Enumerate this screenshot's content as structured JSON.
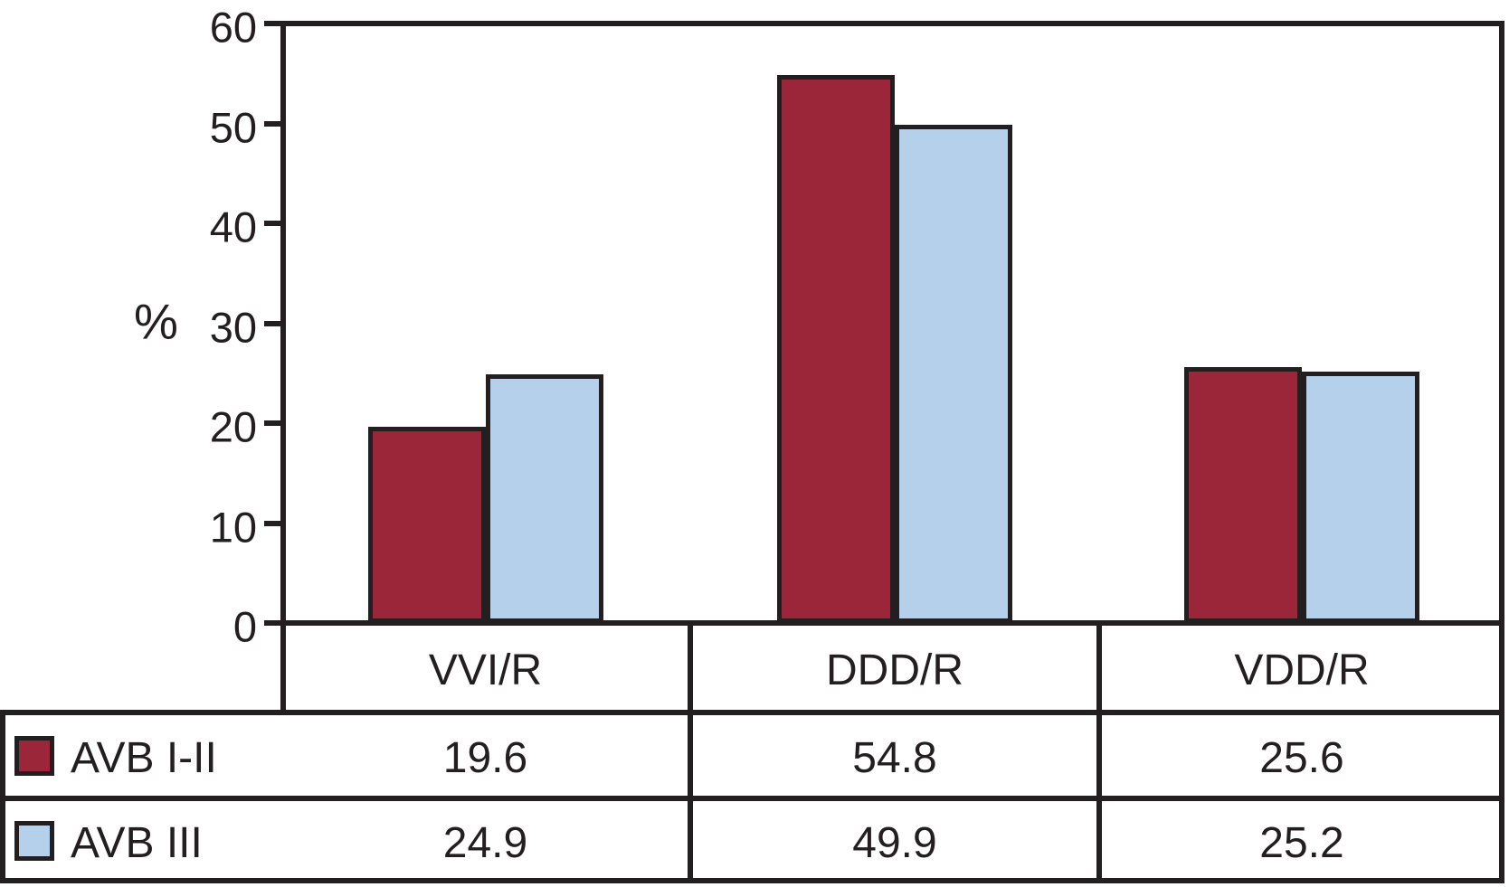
{
  "chart_data": {
    "type": "bar",
    "title": "",
    "ylabel": "%",
    "xlabel": "",
    "ylim": [
      0,
      60
    ],
    "yticks": [
      0,
      10,
      20,
      30,
      40,
      50,
      60
    ],
    "grid": false,
    "legend_position": "table-left-column",
    "categories": [
      "VVI/R",
      "DDD/R",
      "VDD/R"
    ],
    "series": [
      {
        "name": "AVB I-II",
        "color": "#9c2639",
        "values": [
          19.6,
          54.8,
          25.6
        ]
      },
      {
        "name": "AVB III",
        "color": "#b5d0eb",
        "values": [
          24.9,
          49.9,
          25.2
        ]
      }
    ]
  },
  "colors": {
    "line": "#231f20",
    "text": "#231f20",
    "background": "#ffffff"
  }
}
